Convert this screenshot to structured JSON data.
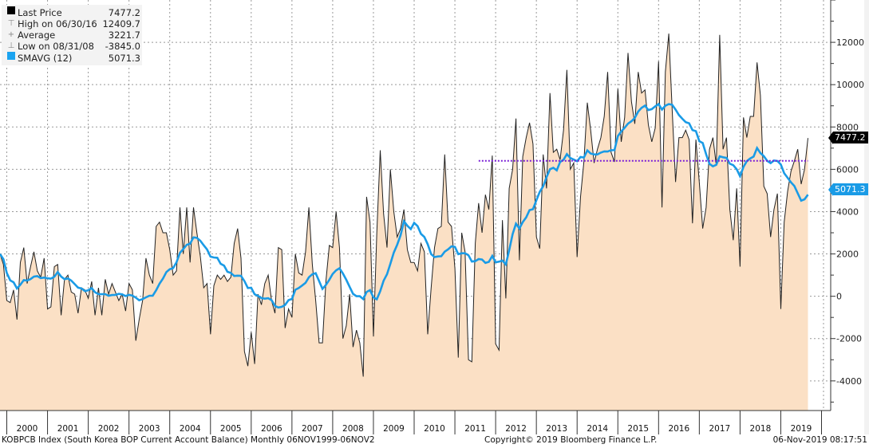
{
  "legend": [
    {
      "symbol": "black-square-icon",
      "label": "Last Price",
      "value": "7477.2"
    },
    {
      "symbol": "high-marker-icon",
      "label": "High on 06/30/16",
      "value": "12409.7"
    },
    {
      "symbol": "average-marker-icon",
      "label": "Average",
      "value": "3221.7"
    },
    {
      "symbol": "low-marker-icon",
      "label": "Low on 08/31/08",
      "value": "-3845.0"
    },
    {
      "symbol": "blue-square-icon",
      "label": "SMAVG (12)",
      "value": "5071.3"
    }
  ],
  "tags": {
    "last": "7477.2",
    "smavg": "5071.3"
  },
  "footer": {
    "left": "KOBPCB Index (South Korea BOP Current Account Balance)  Monthly 06NOV1999-06NOV2",
    "center": "Copyright© 2019 Bloomberg Finance L.P.",
    "right": "06-Nov-2019 08:17:51"
  },
  "colors": {
    "area": "#fbe0c5",
    "line": "#222222",
    "smavg": "#1a9be6",
    "ref_line": "#7a1fd6",
    "last_tag": "#000000"
  },
  "chart_data": {
    "type": "area",
    "start": "1999-11",
    "frequency": "monthly",
    "y_axis_side": "right",
    "ylim": [
      -5400,
      14000
    ],
    "yticks": [
      -4000,
      -2000,
      0,
      2000,
      4000,
      6000,
      8000,
      10000,
      12000
    ],
    "xticks": [
      "2000",
      "2001",
      "2002",
      "2003",
      "2004",
      "2005",
      "2006",
      "2007",
      "2008",
      "2009",
      "2010",
      "2011",
      "2012",
      "2013",
      "2014",
      "2015",
      "2016",
      "2017",
      "2018",
      "2019"
    ],
    "grid": true,
    "legend_position": "top-left",
    "series": [
      {
        "name": "Last Price",
        "values": [
          2000,
          1500,
          -200,
          -300,
          300,
          -1100,
          1600,
          2300,
          600,
          1400,
          2100,
          1200,
          900,
          1800,
          -600,
          -500,
          1400,
          1500,
          -900,
          800,
          1000,
          200,
          100,
          -800,
          400,
          300,
          -100,
          700,
          -900,
          400,
          -900,
          800,
          100,
          600,
          200,
          -200,
          100,
          -700,
          600,
          300,
          -2100,
          -1100,
          -200,
          1800,
          1000,
          600,
          3300,
          3500,
          3000,
          3000,
          2200,
          1000,
          1200,
          4200,
          2000,
          4200,
          1600,
          4200,
          3000,
          1900,
          400,
          600,
          -1800,
          500,
          1000,
          800,
          1000,
          700,
          900,
          2500,
          3200,
          1800,
          -2600,
          -3300,
          -1700,
          -3200,
          100,
          -400,
          600,
          1000,
          -200,
          -800,
          2300,
          2200,
          -1500,
          -600,
          -1000,
          2000,
          1100,
          1000,
          2100,
          4200,
          1500,
          -200,
          -2200,
          -2200,
          700,
          2400,
          2300,
          4000,
          2300,
          -2000,
          -1400,
          100,
          -2400,
          -1600,
          -2200,
          -3800,
          4700,
          3500,
          -1900,
          3000,
          6900,
          3900,
          2300,
          6000,
          4000,
          2800,
          3200,
          4100,
          2200,
          1600,
          1600,
          1200,
          2500,
          2100,
          -1800,
          400,
          2300,
          3200,
          3300,
          6700,
          3500,
          3300,
          1300,
          -2900,
          3000,
          2100,
          -3000,
          -3100,
          2500,
          4400,
          3000,
          4800,
          4100,
          6650,
          -2250,
          -2550,
          3600,
          -100,
          5100,
          6000,
          8400,
          1700,
          6600,
          7500,
          8200,
          7200,
          2800,
          2250,
          6700,
          5100,
          9600,
          6800,
          6950,
          6450,
          7850,
          10700,
          6000,
          6300,
          1850,
          4700,
          6350,
          9150,
          7850,
          6300,
          6950,
          7500,
          8500,
          10600,
          6800,
          6350,
          9800,
          7300,
          8450,
          11500,
          9200,
          8150,
          10600,
          9600,
          9750,
          8100,
          7300,
          7950,
          11100,
          4200,
          10600,
          12409.7,
          8850,
          5400,
          7500,
          7500,
          7850,
          7400,
          3450,
          7400,
          5350,
          3200,
          4200,
          6950,
          7500,
          6200,
          12350,
          6950,
          7500,
          4100,
          2650,
          5100,
          1400,
          8450,
          7500,
          8500,
          8500,
          11050,
          9500,
          5200,
          4850,
          2800,
          4100,
          4850,
          -600,
          3500,
          4950,
          5900,
          6400,
          6950,
          5300,
          6000,
          7477.2
        ]
      },
      {
        "name": "SMAVG (12)",
        "derived": "12-month simple moving average of Last Price"
      }
    ],
    "reference_line": {
      "value": 6400,
      "from": "2011-08",
      "style": "dotted"
    }
  }
}
